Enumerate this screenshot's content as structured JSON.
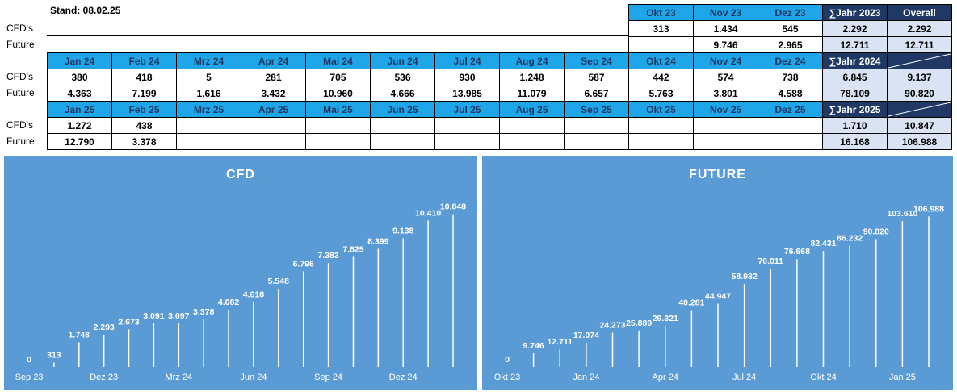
{
  "stand": "Stand: 08.02.25",
  "table": {
    "row_labels": [
      "CFD's",
      "Future"
    ],
    "blocks": [
      {
        "headers": [
          "Okt 23",
          "Nov 23",
          "Dez 23",
          "∑Jahr 2023",
          "Overall"
        ],
        "cfd": [
          "313",
          "1.434",
          "545",
          "2.292",
          "2.292"
        ],
        "future": [
          null,
          "9.746",
          "2.965",
          "12.711",
          "12.711"
        ]
      },
      {
        "headers": [
          "Jan 24",
          "Feb 24",
          "Mrz 24",
          "Apr 24",
          "Mai 24",
          "Jun 24",
          "Jul 24",
          "Aug 24",
          "Sep 24",
          "Okt 24",
          "Nov 24",
          "Dez 24",
          "∑Jahr 2024"
        ],
        "cfd": [
          "380",
          "418",
          "5",
          "281",
          "705",
          "536",
          "930",
          "1.248",
          "587",
          "442",
          "574",
          "738",
          "6.845",
          "9.137"
        ],
        "future": [
          "4.363",
          "7.199",
          "1.616",
          "3.432",
          "10.960",
          "4.666",
          "13.985",
          "11.079",
          "6.657",
          "5.763",
          "3.801",
          "4.588",
          "78.109",
          "90.820"
        ]
      },
      {
        "headers": [
          "Jan 25",
          "Feb 25",
          "Mrz 25",
          "Apr 25",
          "Mai 25",
          "Jun 25",
          "Jul 25",
          "Aug 25",
          "Sep 25",
          "Okt 25",
          "Nov 25",
          "Dez 25",
          "∑Jahr 2025"
        ],
        "cfd": [
          "1.272",
          "438",
          null,
          null,
          null,
          null,
          null,
          null,
          null,
          null,
          null,
          null,
          "1.710",
          "10.847"
        ],
        "future": [
          "12.790",
          "3.378",
          null,
          null,
          null,
          null,
          null,
          null,
          null,
          null,
          null,
          null,
          "16.168",
          "106.988"
        ]
      }
    ]
  },
  "chart_data": [
    {
      "type": "bar",
      "title": "CFD",
      "color": "#ffffff",
      "background": "#5b9bd5",
      "categories": [
        "Sep 23",
        null,
        null,
        "Dez 23",
        null,
        null,
        "Mrz 24",
        null,
        null,
        "Jun 24",
        null,
        null,
        "Sep 24",
        null,
        null,
        "Dez 24",
        null,
        null
      ],
      "values": [
        0,
        313,
        1748,
        2293,
        2673,
        3091,
        3097,
        3378,
        4082,
        4618,
        5548,
        6796,
        7383,
        7825,
        8399,
        9138,
        10410,
        10848
      ],
      "value_labels": [
        "0",
        "313",
        "1.748",
        "2.293",
        "2.673",
        "3.091",
        "3.097",
        "3.378",
        "4.082",
        "4.618",
        "5.548",
        "6.796",
        "7.383",
        "7.825",
        "8.399",
        "9.138",
        "10.410",
        "10.848"
      ],
      "ylim": [
        0,
        11000
      ]
    },
    {
      "type": "bar",
      "title": "FUTURE",
      "color": "#ffffff",
      "background": "#5b9bd5",
      "categories": [
        "Okt 23",
        null,
        null,
        "Jan 24",
        null,
        null,
        "Apr 24",
        null,
        null,
        "Jul 24",
        null,
        null,
        "Okt 24",
        null,
        null,
        "Jan 25",
        null
      ],
      "values": [
        0,
        9746,
        12711,
        17074,
        24273,
        25889,
        29321,
        40281,
        44947,
        58932,
        70011,
        76668,
        82431,
        86232,
        90820,
        103610,
        106988
      ],
      "value_labels": [
        "0",
        "9.746",
        "12.711",
        "17.074",
        "24.273",
        "25.889",
        "29.321",
        "40.281",
        "44.947",
        "58.932",
        "70.011",
        "76.668",
        "82.431",
        "86.232",
        "90.820",
        "103.610",
        "106.988"
      ],
      "ylim": [
        0,
        110000
      ]
    }
  ]
}
